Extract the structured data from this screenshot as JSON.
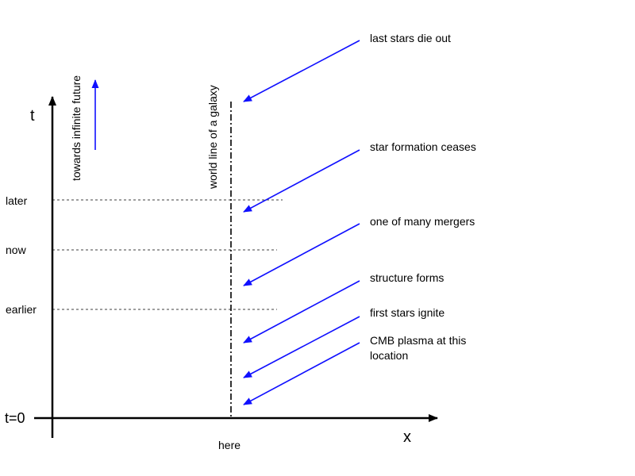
{
  "colors": {
    "accent": "#1010ff",
    "axis": "#000000",
    "background": "#ffffff"
  },
  "axes": {
    "t_label": "t",
    "x_label": "x",
    "origin_label": "t=0",
    "here_label": "here"
  },
  "time_levels": {
    "later": "later",
    "now": "now",
    "earlier": "earlier"
  },
  "future_note": "towards infinite future",
  "worldline_label": "world line of a galaxy",
  "events": {
    "last_stars": "last stars die out",
    "star_formation": "star formation ceases",
    "mergers": "one of many mergers",
    "structure": "structure forms",
    "first_stars": "first stars ignite",
    "cmb_line1": "CMB plasma at this",
    "cmb_line2": "location"
  }
}
